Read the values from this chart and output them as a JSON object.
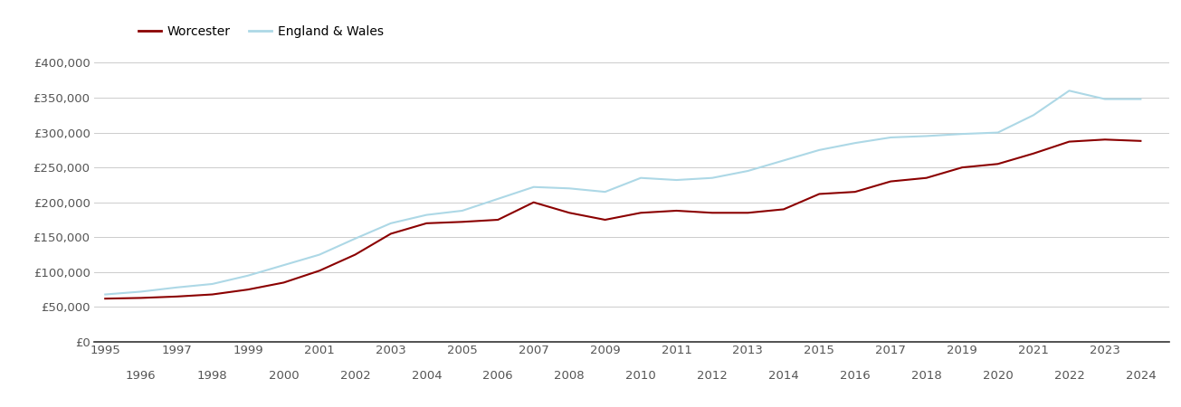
{
  "worcester": {
    "years": [
      1995,
      1996,
      1997,
      1998,
      1999,
      2000,
      2001,
      2002,
      2003,
      2004,
      2005,
      2006,
      2007,
      2008,
      2009,
      2010,
      2011,
      2012,
      2013,
      2014,
      2015,
      2016,
      2017,
      2018,
      2019,
      2020,
      2021,
      2022,
      2023,
      2024
    ],
    "values": [
      62000,
      63000,
      65000,
      68000,
      75000,
      85000,
      102000,
      125000,
      155000,
      170000,
      172000,
      175000,
      200000,
      185000,
      175000,
      185000,
      188000,
      185000,
      185000,
      190000,
      212000,
      215000,
      230000,
      235000,
      250000,
      255000,
      270000,
      287000,
      290000,
      288000
    ]
  },
  "england_wales": {
    "years": [
      1995,
      1996,
      1997,
      1998,
      1999,
      2000,
      2001,
      2002,
      2003,
      2004,
      2005,
      2006,
      2007,
      2008,
      2009,
      2010,
      2011,
      2012,
      2013,
      2014,
      2015,
      2016,
      2017,
      2018,
      2019,
      2020,
      2021,
      2022,
      2023,
      2024
    ],
    "values": [
      68000,
      72000,
      78000,
      83000,
      95000,
      110000,
      125000,
      148000,
      170000,
      182000,
      188000,
      205000,
      222000,
      220000,
      215000,
      235000,
      232000,
      235000,
      245000,
      260000,
      275000,
      285000,
      293000,
      295000,
      298000,
      300000,
      325000,
      360000,
      348000,
      348000
    ]
  },
  "worcester_color": "#8B0000",
  "england_wales_color": "#ADD8E6",
  "background_color": "#ffffff",
  "grid_color": "#cccccc",
  "ytick_labels": [
    "£0",
    "£50,000",
    "£100,000",
    "£150,000",
    "£200,000",
    "£250,000",
    "£300,000",
    "£350,000",
    "£400,000"
  ],
  "ytick_values": [
    0,
    50000,
    100000,
    150000,
    200000,
    250000,
    300000,
    350000,
    400000
  ],
  "ylim": [
    0,
    420000
  ],
  "xlim_min": 1994.7,
  "xlim_max": 2024.8,
  "xtick_odd": [
    1995,
    1997,
    1999,
    2001,
    2003,
    2005,
    2007,
    2009,
    2011,
    2013,
    2015,
    2017,
    2019,
    2021,
    2023
  ],
  "xtick_even": [
    1996,
    1998,
    2000,
    2002,
    2004,
    2006,
    2008,
    2010,
    2012,
    2014,
    2016,
    2018,
    2020,
    2022,
    2024
  ],
  "legend_worcester": "Worcester",
  "legend_ew": "England & Wales",
  "line_width": 1.5,
  "text_color": "#555555",
  "spine_color": "#333333",
  "tick_fontsize": 9.5
}
